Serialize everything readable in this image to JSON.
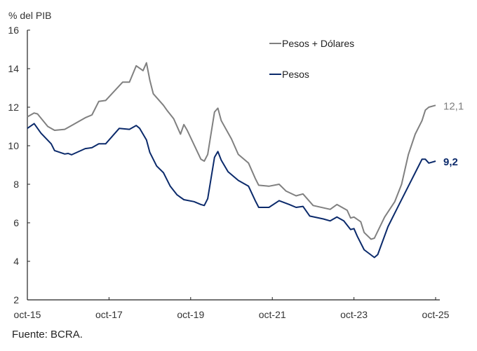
{
  "chart_data": {
    "type": "line",
    "ylabel": "% del PIB",
    "ylim": [
      2,
      16
    ],
    "yticks": [
      "2",
      "4",
      "6",
      "8",
      "10",
      "12",
      "14",
      "16"
    ],
    "xlim": [
      "2015-10",
      "2025-10"
    ],
    "xticks": [
      {
        "date": "2015-10",
        "label": "oct-15"
      },
      {
        "date": "2017-10",
        "label": "oct-17"
      },
      {
        "date": "2019-10",
        "label": "oct-19"
      },
      {
        "date": "2021-10",
        "label": "oct-21"
      },
      {
        "date": "2023-10",
        "label": "oct-23"
      },
      {
        "date": "2025-10",
        "label": "oct-25"
      }
    ],
    "grid": false,
    "legend_placement": "top-center",
    "series": [
      {
        "name": "Pesos + Dólares",
        "color": "#808080",
        "end_label": "12,1",
        "points": [
          [
            "2015-10",
            11.5
          ],
          [
            "2015-12",
            11.7
          ],
          [
            "2016-01",
            11.65
          ],
          [
            "2016-04",
            11.0
          ],
          [
            "2016-06",
            10.8
          ],
          [
            "2016-09",
            10.85
          ],
          [
            "2016-11",
            11.05
          ],
          [
            "2017-03",
            11.45
          ],
          [
            "2017-05",
            11.6
          ],
          [
            "2017-07",
            12.3
          ],
          [
            "2017-09",
            12.35
          ],
          [
            "2018-02",
            13.3
          ],
          [
            "2018-04",
            13.3
          ],
          [
            "2018-06",
            14.15
          ],
          [
            "2018-08",
            13.9
          ],
          [
            "2018-09",
            14.3
          ],
          [
            "2018-10",
            13.4
          ],
          [
            "2018-11",
            12.7
          ],
          [
            "2019-02",
            12.1
          ],
          [
            "2019-03",
            11.85
          ],
          [
            "2019-05",
            11.4
          ],
          [
            "2019-07",
            10.6
          ],
          [
            "2019-08",
            11.1
          ],
          [
            "2019-09",
            10.8
          ],
          [
            "2020-01",
            9.3
          ],
          [
            "2020-02",
            9.2
          ],
          [
            "2020-03",
            9.55
          ],
          [
            "2020-05",
            11.75
          ],
          [
            "2020-06",
            11.95
          ],
          [
            "2020-07",
            11.3
          ],
          [
            "2020-10",
            10.35
          ],
          [
            "2020-12",
            9.55
          ],
          [
            "2021-03",
            9.1
          ],
          [
            "2021-05",
            8.3
          ],
          [
            "2021-06",
            7.95
          ],
          [
            "2021-09",
            7.9
          ],
          [
            "2021-12",
            8.0
          ],
          [
            "2022-02",
            7.65
          ],
          [
            "2022-05",
            7.4
          ],
          [
            "2022-07",
            7.5
          ],
          [
            "2022-10",
            6.9
          ],
          [
            "2023-03",
            6.7
          ],
          [
            "2023-05",
            6.95
          ],
          [
            "2023-08",
            6.65
          ],
          [
            "2023-09",
            6.25
          ],
          [
            "2023-10",
            6.3
          ],
          [
            "2023-12",
            6.05
          ],
          [
            "2024-01",
            5.5
          ],
          [
            "2024-03",
            5.15
          ],
          [
            "2024-04",
            5.2
          ],
          [
            "2024-07",
            6.3
          ],
          [
            "2024-10",
            7.1
          ],
          [
            "2024-12",
            8.0
          ],
          [
            "2025-02",
            9.55
          ],
          [
            "2025-04",
            10.6
          ],
          [
            "2025-06",
            11.3
          ],
          [
            "2025-07",
            11.85
          ],
          [
            "2025-08",
            12.0
          ],
          [
            "2025-10",
            12.1
          ]
        ]
      },
      {
        "name": "Pesos",
        "color": "#0b2a6b",
        "end_label": "9,2",
        "points": [
          [
            "2015-10",
            10.9
          ],
          [
            "2015-12",
            11.15
          ],
          [
            "2016-02",
            10.65
          ],
          [
            "2016-05",
            10.1
          ],
          [
            "2016-06",
            9.75
          ],
          [
            "2016-09",
            9.57
          ],
          [
            "2016-10",
            9.6
          ],
          [
            "2016-11",
            9.53
          ],
          [
            "2017-03",
            9.85
          ],
          [
            "2017-05",
            9.9
          ],
          [
            "2017-07",
            10.1
          ],
          [
            "2017-09",
            10.1
          ],
          [
            "2018-01",
            10.9
          ],
          [
            "2018-04",
            10.85
          ],
          [
            "2018-06",
            11.05
          ],
          [
            "2018-07",
            10.9
          ],
          [
            "2018-09",
            10.3
          ],
          [
            "2018-10",
            9.65
          ],
          [
            "2018-12",
            8.95
          ],
          [
            "2019-02",
            8.6
          ],
          [
            "2019-04",
            7.9
          ],
          [
            "2019-06",
            7.45
          ],
          [
            "2019-08",
            7.2
          ],
          [
            "2019-11",
            7.1
          ],
          [
            "2020-01",
            6.95
          ],
          [
            "2020-02",
            6.9
          ],
          [
            "2020-03",
            7.25
          ],
          [
            "2020-05",
            9.4
          ],
          [
            "2020-06",
            9.7
          ],
          [
            "2020-07",
            9.25
          ],
          [
            "2020-09",
            8.65
          ],
          [
            "2020-12",
            8.2
          ],
          [
            "2021-03",
            7.9
          ],
          [
            "2021-05",
            7.15
          ],
          [
            "2021-06",
            6.8
          ],
          [
            "2021-09",
            6.8
          ],
          [
            "2021-12",
            7.15
          ],
          [
            "2022-03",
            6.95
          ],
          [
            "2022-05",
            6.8
          ],
          [
            "2022-07",
            6.85
          ],
          [
            "2022-09",
            6.35
          ],
          [
            "2023-01",
            6.2
          ],
          [
            "2023-03",
            6.1
          ],
          [
            "2023-05",
            6.3
          ],
          [
            "2023-07",
            6.1
          ],
          [
            "2023-09",
            5.65
          ],
          [
            "2023-10",
            5.7
          ],
          [
            "2023-11",
            5.3
          ],
          [
            "2024-01",
            4.6
          ],
          [
            "2024-04",
            4.2
          ],
          [
            "2024-05",
            4.35
          ],
          [
            "2024-08",
            5.8
          ],
          [
            "2024-11",
            6.85
          ],
          [
            "2025-04",
            8.6
          ],
          [
            "2025-06",
            9.3
          ],
          [
            "2025-07",
            9.3
          ],
          [
            "2025-08",
            9.1
          ],
          [
            "2025-10",
            9.2
          ]
        ]
      }
    ]
  },
  "source": "Fuente: BCRA."
}
